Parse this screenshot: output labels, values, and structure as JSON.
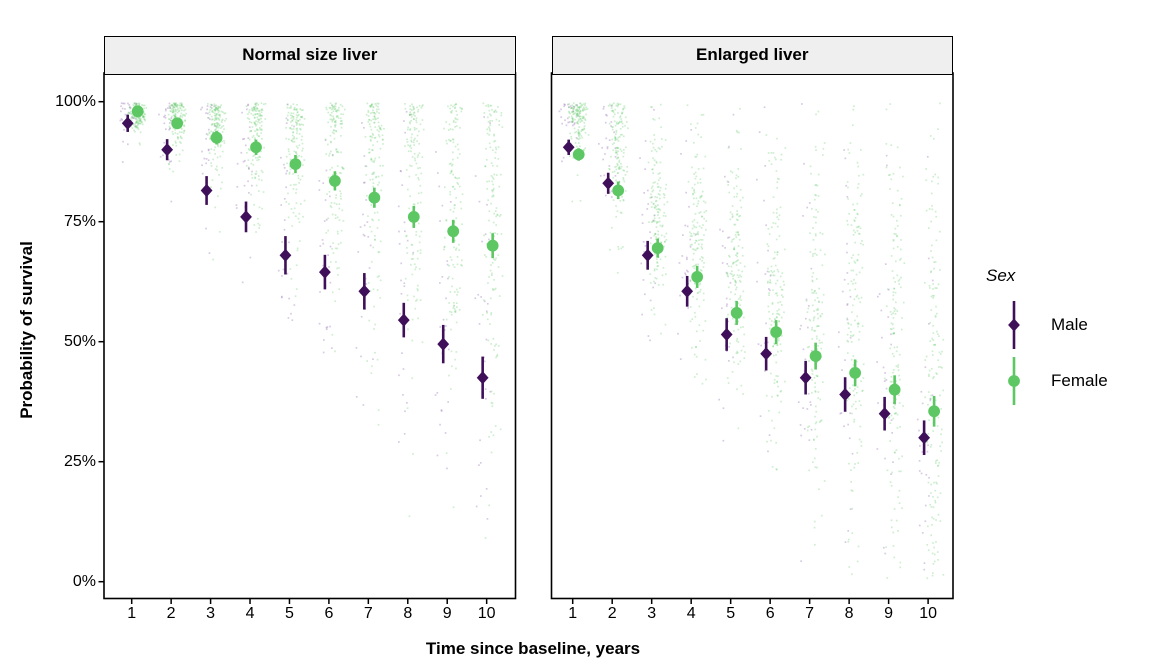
{
  "chart_data": {
    "type": "scatter",
    "subtype": "pointrange-with-jittered-raw-probabilities",
    "xlabel": "Time since baseline, years",
    "ylabel": "Probability of survival",
    "x": [
      1,
      2,
      3,
      4,
      5,
      6,
      7,
      8,
      9,
      10
    ],
    "x_tick_labels": [
      "1",
      "2",
      "3",
      "4",
      "5",
      "6",
      "7",
      "8",
      "9",
      "10"
    ],
    "y_tick_labels": [
      "100%",
      "75%",
      "50%",
      "25%",
      "0%"
    ],
    "y_tick_values": [
      100,
      75,
      50,
      25,
      0
    ],
    "ylim": [
      0,
      100
    ],
    "grid": "off",
    "legend": {
      "title": "Sex",
      "entries": [
        "Male",
        "Female"
      ],
      "position": "right"
    },
    "facets": [
      {
        "label": "Normal size liver",
        "series": [
          {
            "name": "Male",
            "values": [
              95.5,
              90,
              81.5,
              76,
              68,
              64.5,
              60.5,
              54.5,
              49.5,
              42.5
            ],
            "errors": [
              1.8,
              2.2,
              3,
              3.2,
              4,
              3.6,
              3.8,
              3.6,
              4,
              4.4
            ]
          },
          {
            "name": "Female",
            "values": [
              98,
              95.5,
              92.5,
              90.5,
              87,
              83.5,
              80,
              76,
              73,
              70
            ],
            "errors": [
              0.9,
              1.1,
              1.4,
              1.6,
              1.9,
              2,
              2.1,
              2.3,
              2.4,
              2.6
            ]
          }
        ]
      },
      {
        "label": "Enlarged liver",
        "series": [
          {
            "name": "Male",
            "values": [
              90.5,
              83,
              68,
              60.5,
              51.5,
              47.5,
              42.5,
              39,
              35,
              30
            ],
            "errors": [
              1.6,
              2.2,
              3,
              3.2,
              3.4,
              3.5,
              3.5,
              3.6,
              3.5,
              3.6
            ]
          },
          {
            "name": "Female",
            "values": [
              89,
              81.5,
              69.5,
              63.5,
              56,
              52,
              47,
              43.5,
              40,
              35.5
            ],
            "errors": [
              1.3,
              1.8,
              2,
              2.3,
              2.5,
              2.5,
              2.8,
              2.8,
              3,
              3.2
            ]
          }
        ]
      }
    ],
    "colors": {
      "male": "#3f1059",
      "female": "#5dc863",
      "male_jitter": "#7b4f9e",
      "female_jitter": "#5dc863",
      "strip_bg": "#efefef",
      "border": "#000000"
    },
    "jitter_style": {
      "center_offset": 8,
      "sd_base": 6,
      "sd_step": 2.1,
      "female_count": 150,
      "male_count": 28,
      "dot_size": 1.7,
      "dot_opacity": 0.3,
      "half_width": 6.5,
      "seed": 42
    }
  }
}
